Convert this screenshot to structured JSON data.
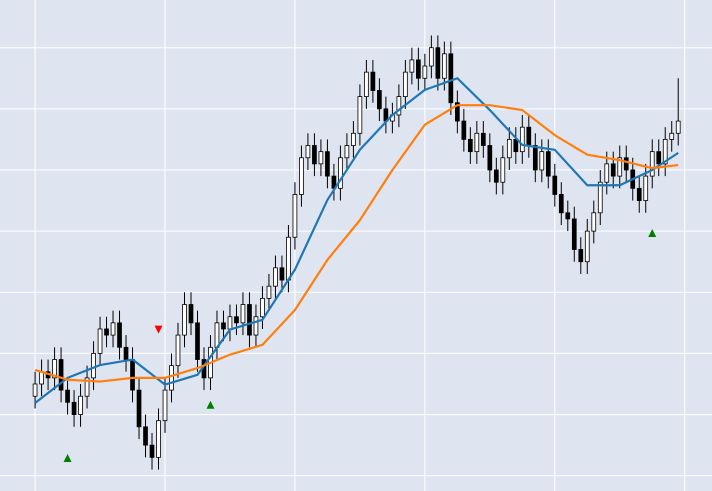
{
  "chart_data": {
    "type": "candlestick",
    "xlim": [
      -5.4,
      104.2
    ],
    "ylim": [
      -0.25,
      7.78
    ],
    "xgrid": [
      0,
      20,
      40,
      60,
      80,
      100
    ],
    "ygrid": [
      0,
      1,
      2,
      3,
      4,
      5,
      6,
      7
    ],
    "background": "#dfe5f0",
    "grid_color": "#ffffff",
    "up_color": "#ffffff",
    "down_color": "#000000",
    "edge_color": "#000000",
    "open": [
      1.3,
      1.5,
      1.7,
      1.6,
      1.9,
      1.4,
      1.2,
      1.0,
      1.3,
      1.6,
      2.0,
      2.4,
      2.3,
      2.5,
      2.1,
      1.9,
      1.4,
      0.8,
      0.5,
      0.3,
      0.9,
      1.4,
      1.8,
      2.3,
      2.8,
      2.5,
      1.9,
      1.6,
      2.1,
      2.5,
      2.4,
      2.6,
      2.5,
      2.8,
      2.3,
      2.6,
      2.9,
      3.1,
      3.4,
      3.2,
      3.9,
      4.6,
      5.2,
      5.4,
      5.1,
      5.3,
      4.9,
      4.7,
      5.2,
      5.4,
      5.6,
      6.2,
      6.6,
      6.3,
      6.0,
      5.8,
      5.9,
      6.2,
      6.6,
      6.8,
      6.5,
      6.7,
      7.0,
      6.5,
      6.9,
      6.1,
      5.8,
      5.5,
      5.3,
      5.6,
      5.4,
      5.0,
      4.8,
      5.2,
      5.5,
      5.3,
      5.7,
      5.4,
      5.0,
      5.3,
      4.9,
      4.6,
      4.3,
      4.2,
      3.7,
      3.5,
      4.0,
      4.3,
      4.8,
      5.1,
      4.9,
      5.2,
      5.0,
      4.7,
      4.5,
      4.9,
      5.3,
      5.1,
      5.5,
      5.6
    ],
    "high": [
      1.7,
      1.9,
      1.9,
      2.1,
      2.1,
      1.6,
      1.4,
      1.5,
      1.8,
      2.2,
      2.6,
      2.6,
      2.7,
      2.7,
      2.3,
      2.1,
      1.6,
      1.0,
      0.7,
      1.1,
      1.6,
      2.0,
      2.5,
      3.0,
      3.0,
      2.7,
      2.1,
      2.3,
      2.7,
      2.7,
      2.8,
      2.8,
      3.0,
      3.0,
      2.8,
      3.1,
      3.3,
      3.6,
      3.6,
      4.1,
      4.8,
      5.4,
      5.6,
      5.6,
      5.5,
      5.5,
      5.1,
      5.4,
      5.6,
      5.8,
      6.4,
      6.8,
      6.8,
      6.5,
      6.2,
      6.1,
      6.4,
      6.8,
      7.0,
      7.0,
      6.9,
      7.2,
      7.2,
      7.1,
      7.1,
      6.3,
      6.0,
      5.7,
      5.8,
      5.8,
      5.6,
      5.2,
      5.4,
      5.7,
      5.7,
      5.9,
      5.9,
      5.6,
      5.5,
      5.5,
      5.1,
      4.8,
      4.5,
      4.4,
      3.9,
      4.2,
      4.5,
      5.0,
      5.3,
      5.3,
      5.4,
      5.4,
      5.2,
      4.9,
      5.1,
      5.5,
      5.5,
      5.7,
      5.8,
      6.5
    ],
    "low": [
      1.1,
      1.3,
      1.4,
      1.4,
      1.2,
      1.0,
      0.8,
      0.8,
      1.1,
      1.4,
      1.8,
      2.1,
      2.1,
      1.9,
      1.7,
      1.2,
      0.6,
      0.3,
      0.1,
      0.1,
      0.7,
      1.2,
      1.6,
      2.1,
      2.3,
      1.7,
      1.4,
      1.4,
      1.9,
      2.2,
      2.2,
      2.3,
      2.3,
      2.1,
      2.1,
      2.4,
      2.7,
      2.9,
      3.0,
      3.0,
      3.7,
      4.4,
      5.0,
      4.9,
      4.9,
      4.7,
      4.5,
      4.5,
      5.0,
      5.2,
      5.4,
      6.0,
      6.1,
      5.8,
      5.6,
      5.6,
      5.7,
      6.0,
      6.4,
      6.3,
      6.3,
      6.5,
      6.3,
      6.3,
      5.9,
      5.6,
      5.3,
      5.1,
      5.1,
      5.2,
      4.8,
      4.6,
      4.6,
      5.0,
      5.1,
      5.1,
      5.2,
      4.8,
      4.8,
      4.7,
      4.4,
      4.1,
      4.0,
      3.5,
      3.3,
      3.3,
      3.8,
      4.1,
      4.6,
      4.7,
      4.7,
      4.8,
      4.5,
      4.3,
      4.3,
      4.7,
      4.9,
      4.9,
      5.3,
      5.4
    ],
    "close": [
      1.5,
      1.7,
      1.6,
      1.9,
      1.4,
      1.2,
      1.0,
      1.3,
      1.6,
      2.0,
      2.4,
      2.3,
      2.5,
      2.1,
      1.9,
      1.4,
      0.8,
      0.5,
      0.3,
      0.9,
      1.4,
      1.8,
      2.3,
      2.8,
      2.5,
      1.9,
      1.6,
      2.1,
      2.5,
      2.4,
      2.6,
      2.5,
      2.8,
      2.3,
      2.6,
      2.9,
      3.1,
      3.4,
      3.2,
      3.9,
      4.6,
      5.2,
      5.4,
      5.1,
      5.3,
      4.9,
      4.7,
      5.2,
      5.4,
      5.6,
      6.2,
      6.6,
      6.3,
      6.0,
      5.8,
      5.9,
      6.2,
      6.6,
      6.8,
      6.5,
      6.7,
      7.0,
      6.5,
      6.9,
      6.1,
      5.8,
      5.5,
      5.3,
      5.6,
      5.4,
      5.0,
      4.8,
      5.2,
      5.5,
      5.3,
      5.7,
      5.4,
      5.0,
      5.3,
      4.9,
      4.6,
      4.3,
      4.2,
      3.7,
      3.5,
      4.0,
      4.3,
      4.8,
      5.1,
      4.9,
      5.2,
      5.0,
      4.7,
      4.5,
      4.9,
      5.3,
      5.1,
      5.5,
      5.6,
      5.8
    ],
    "overlays": [
      {
        "color": "#1f77b4",
        "x": [
          0,
          5,
          10,
          15,
          20,
          25,
          30,
          35,
          40,
          45,
          50,
          55,
          60,
          65,
          70,
          75,
          80,
          85,
          90,
          95,
          99
        ],
        "values": [
          1.19,
          1.6,
          1.81,
          1.9,
          1.49,
          1.65,
          2.39,
          2.55,
          3.37,
          4.51,
          5.33,
          5.9,
          6.31,
          6.5,
          5.98,
          5.41,
          5.33,
          4.75,
          4.75,
          5.0,
          5.28
        ]
      },
      {
        "color": "#ff7f0e",
        "x": [
          0,
          5,
          10,
          15,
          20,
          25,
          30,
          35,
          40,
          45,
          50,
          55,
          60,
          65,
          70,
          75,
          80,
          85,
          90,
          95,
          99
        ],
        "values": [
          1.73,
          1.57,
          1.54,
          1.6,
          1.6,
          1.76,
          1.98,
          2.14,
          2.71,
          3.53,
          4.18,
          5.0,
          5.74,
          6.06,
          6.06,
          5.98,
          5.57,
          5.25,
          5.16,
          5.03,
          5.08
        ]
      }
    ],
    "markers": [
      {
        "shape": "triangle-up",
        "color": "#008000",
        "x": [
          5,
          27,
          95
        ],
        "values": [
          0.29,
          1.16,
          3.97
        ]
      },
      {
        "shape": "triangle-down",
        "color": "#ff0000",
        "x": [
          19
        ],
        "values": [
          2.39
        ]
      }
    ]
  }
}
